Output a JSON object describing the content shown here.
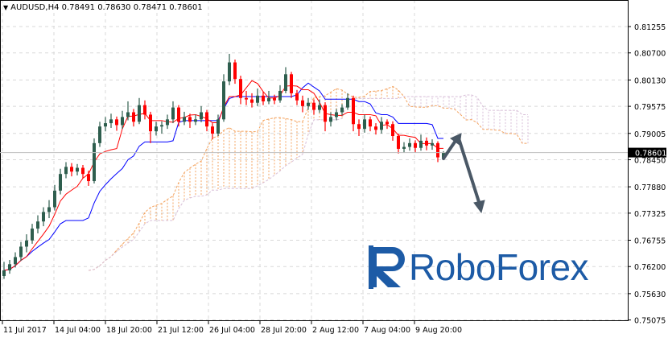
{
  "header": {
    "symbol": "AUDUSD,H4",
    "open": "0.78491",
    "high": "0.78630",
    "low": "0.78471",
    "close": "0.78601",
    "menu_icon": "triangle-down-icon"
  },
  "logo": {
    "text": "RoboForex",
    "color": "#1d5ba6"
  },
  "chart_data": {
    "type": "candlestick",
    "title": "AUDUSD,H4",
    "ylim": [
      0.75075,
      0.8181
    ],
    "y_ticks": [
      "0.81255",
      "0.80700",
      "0.80130",
      "0.79575",
      "0.79005",
      "0.78450",
      "0.77880",
      "0.77325",
      "0.76755",
      "0.76200",
      "0.75630",
      "0.75075"
    ],
    "x_ticks": [
      "11 Jul 2017",
      "14 Jul 04:00",
      "18 Jul 20:00",
      "21 Jul 12:00",
      "26 Jul 04:00",
      "28 Jul 20:00",
      "2 Aug 12:00",
      "7 Aug 04:00",
      "9 Aug 20:00"
    ],
    "current_price": "0.78601",
    "grid": true,
    "colors": {
      "bull": "#2e5e4e",
      "bear": "#ff0000",
      "tenkan": "#ff0000",
      "kijun": "#0000ff",
      "senkou_a": "#f4a460",
      "senkou_b": "#d8bfd8",
      "arrow": "#4a5866",
      "price_label_bg": "#000000"
    },
    "indicator": "Ichimoku Kinko Hyo",
    "annotation": "forecast arrow: up then down",
    "ohlc": [
      [
        0.76,
        0.763,
        0.7594,
        0.7612
      ],
      [
        0.7612,
        0.7634,
        0.7605,
        0.7625
      ],
      [
        0.7625,
        0.765,
        0.7618,
        0.764
      ],
      [
        0.764,
        0.7672,
        0.7632,
        0.7662
      ],
      [
        0.7662,
        0.7688,
        0.765,
        0.7675
      ],
      [
        0.7675,
        0.771,
        0.7668,
        0.77
      ],
      [
        0.77,
        0.7728,
        0.769,
        0.7715
      ],
      [
        0.7715,
        0.7745,
        0.7705,
        0.7735
      ],
      [
        0.7735,
        0.776,
        0.7722,
        0.7745
      ],
      [
        0.7745,
        0.7792,
        0.7738,
        0.778
      ],
      [
        0.778,
        0.7826,
        0.7772,
        0.7815
      ],
      [
        0.7815,
        0.784,
        0.7806,
        0.783
      ],
      [
        0.783,
        0.7838,
        0.781,
        0.782
      ],
      [
        0.782,
        0.7836,
        0.7812,
        0.7828
      ],
      [
        0.7828,
        0.7834,
        0.7806,
        0.7815
      ],
      [
        0.7815,
        0.7822,
        0.779,
        0.78
      ],
      [
        0.78,
        0.789,
        0.7795,
        0.788
      ],
      [
        0.788,
        0.7925,
        0.7872,
        0.7915
      ],
      [
        0.7915,
        0.7935,
        0.7905,
        0.7922
      ],
      [
        0.7922,
        0.7942,
        0.7912,
        0.793
      ],
      [
        0.793,
        0.7936,
        0.7906,
        0.7918
      ],
      [
        0.7918,
        0.7948,
        0.791,
        0.7935
      ],
      [
        0.7935,
        0.7968,
        0.7928,
        0.7945
      ],
      [
        0.7945,
        0.7952,
        0.7915,
        0.7925
      ],
      [
        0.7925,
        0.7975,
        0.792,
        0.796
      ],
      [
        0.796,
        0.797,
        0.793,
        0.794
      ],
      [
        0.794,
        0.7946,
        0.788,
        0.7905
      ],
      [
        0.7905,
        0.7925,
        0.7896,
        0.7915
      ],
      [
        0.7915,
        0.7926,
        0.79,
        0.7918
      ],
      [
        0.7918,
        0.794,
        0.791,
        0.793
      ],
      [
        0.793,
        0.7968,
        0.7922,
        0.7955
      ],
      [
        0.7955,
        0.796,
        0.7915,
        0.7925
      ],
      [
        0.7925,
        0.7946,
        0.7918,
        0.7935
      ],
      [
        0.7935,
        0.7942,
        0.7912,
        0.7925
      ],
      [
        0.7925,
        0.794,
        0.7918,
        0.793
      ],
      [
        0.793,
        0.7958,
        0.7924,
        0.7945
      ],
      [
        0.7945,
        0.795,
        0.7905,
        0.7915
      ],
      [
        0.7915,
        0.7922,
        0.7888,
        0.79
      ],
      [
        0.79,
        0.794,
        0.7895,
        0.793
      ],
      [
        0.793,
        0.8025,
        0.7925,
        0.801
      ],
      [
        0.801,
        0.8068,
        0.8002,
        0.805
      ],
      [
        0.805,
        0.8056,
        0.8005,
        0.8015
      ],
      [
        0.8015,
        0.8022,
        0.7962,
        0.7975
      ],
      [
        0.7975,
        0.799,
        0.796,
        0.7972
      ],
      [
        0.7972,
        0.7985,
        0.7955,
        0.7965
      ],
      [
        0.7965,
        0.7995,
        0.7958,
        0.798
      ],
      [
        0.798,
        0.7988,
        0.796,
        0.7968
      ],
      [
        0.7968,
        0.799,
        0.7962,
        0.7975
      ],
      [
        0.7975,
        0.7982,
        0.7962,
        0.797
      ],
      [
        0.797,
        0.8002,
        0.7965,
        0.799
      ],
      [
        0.799,
        0.804,
        0.7985,
        0.8025
      ],
      [
        0.8025,
        0.803,
        0.7975,
        0.7985
      ],
      [
        0.7985,
        0.7992,
        0.796,
        0.797
      ],
      [
        0.797,
        0.798,
        0.7945,
        0.7958
      ],
      [
        0.7958,
        0.7975,
        0.795,
        0.7965
      ],
      [
        0.7965,
        0.7972,
        0.794,
        0.795
      ],
      [
        0.795,
        0.7972,
        0.7944,
        0.796
      ],
      [
        0.796,
        0.7966,
        0.7905,
        0.7925
      ],
      [
        0.7925,
        0.7945,
        0.7915,
        0.7935
      ],
      [
        0.7935,
        0.7952,
        0.7928,
        0.7945
      ],
      [
        0.7945,
        0.7962,
        0.7938,
        0.7955
      ],
      [
        0.7955,
        0.7985,
        0.795,
        0.7975
      ],
      [
        0.7975,
        0.798,
        0.7905,
        0.792
      ],
      [
        0.792,
        0.793,
        0.7895,
        0.791
      ],
      [
        0.791,
        0.794,
        0.7902,
        0.793
      ],
      [
        0.793,
        0.7936,
        0.7905,
        0.7915
      ],
      [
        0.7915,
        0.7922,
        0.7898,
        0.7908
      ],
      [
        0.7908,
        0.7935,
        0.79,
        0.7925
      ],
      [
        0.7925,
        0.793,
        0.791,
        0.792
      ],
      [
        0.792,
        0.7926,
        0.7885,
        0.7895
      ],
      [
        0.7895,
        0.79,
        0.7858,
        0.7868
      ],
      [
        0.7868,
        0.7882,
        0.786,
        0.7872
      ],
      [
        0.7872,
        0.789,
        0.7864,
        0.788
      ],
      [
        0.788,
        0.7886,
        0.786,
        0.787
      ],
      [
        0.787,
        0.7898,
        0.7864,
        0.7885
      ],
      [
        0.7885,
        0.7892,
        0.7865,
        0.7875
      ],
      [
        0.7875,
        0.7888,
        0.7866,
        0.788
      ],
      [
        0.788,
        0.7884,
        0.784,
        0.785
      ],
      [
        0.78491,
        0.7863,
        0.78471,
        0.78601
      ]
    ]
  }
}
